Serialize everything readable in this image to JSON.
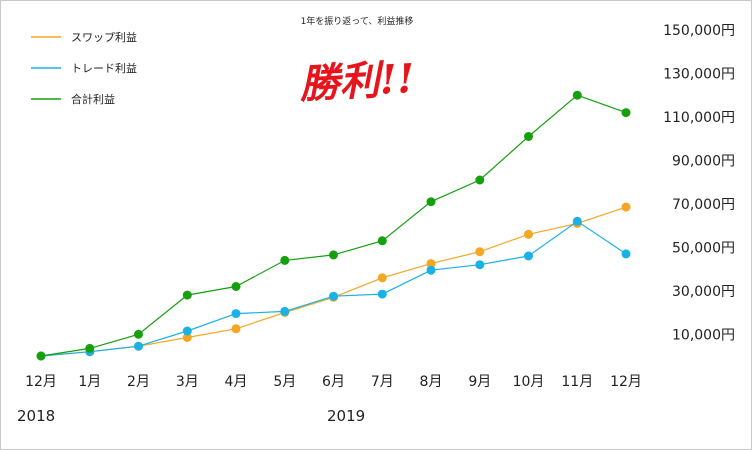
{
  "chart_data": {
    "type": "line",
    "title": "1年を振り返って、利益推移",
    "annotation": "勝利!!",
    "categories": [
      "12月",
      "1月",
      "2月",
      "3月",
      "4月",
      "5月",
      "6月",
      "7月",
      "8月",
      "9月",
      "10月",
      "11月",
      "12月"
    ],
    "year_labels": [
      "2018",
      "2019"
    ],
    "yticks": [
      "10,000円",
      "30,000円",
      "50,000円",
      "70,000円",
      "90,000円",
      "110,000円",
      "130,000円",
      "150,000円"
    ],
    "ytick_values": [
      10000,
      30000,
      50000,
      70000,
      90000,
      110000,
      130000,
      150000
    ],
    "ylim": [
      0,
      155000
    ],
    "legend_position": "top-left",
    "grid": false,
    "series": [
      {
        "name": "スワップ利益",
        "color": "#f5a623",
        "values": [
          0,
          2000,
          4500,
          8500,
          12500,
          20000,
          27000,
          36000,
          42500,
          48000,
          56000,
          61000,
          68500
        ]
      },
      {
        "name": "トレード利益",
        "color": "#1ab2e6",
        "values": [
          0,
          2000,
          4500,
          11500,
          19500,
          20500,
          27500,
          28500,
          39500,
          42000,
          46000,
          62000,
          47000
        ]
      },
      {
        "name": "合計利益",
        "color": "#16a00e",
        "values": [
          0,
          3500,
          10000,
          28000,
          32000,
          44000,
          46500,
          53000,
          71000,
          81000,
          101000,
          120000,
          112000
        ]
      }
    ]
  }
}
